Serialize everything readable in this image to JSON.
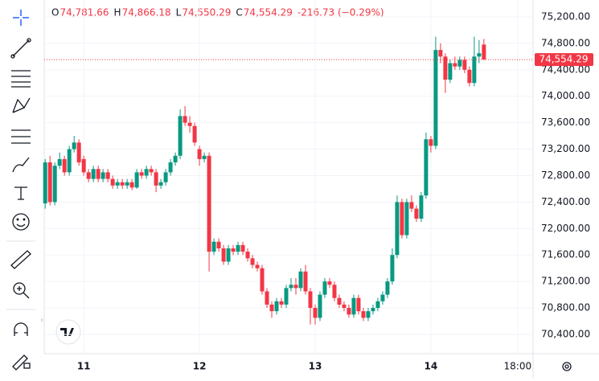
{
  "chart_data": {
    "type": "candlestick",
    "legend": [
      {
        "key": "O",
        "text": "74,781.66"
      },
      {
        "key": "H",
        "text": "74,866.18"
      },
      {
        "key": "L",
        "text": "74,550.29"
      },
      {
        "key": "C",
        "text": "74,554.29"
      }
    ],
    "change": "-216.73 (−0.29%)",
    "last_price": {
      "value": 74554.29,
      "label": "74,554.29"
    },
    "up_color": "#089981",
    "down_color": "#f23645",
    "open": [
      72380,
      73000,
      72400,
      72950,
      73050,
      72850,
      73200,
      73300,
      73050,
      72850,
      72750,
      72900,
      72750,
      72850,
      72750,
      72650,
      72700,
      72650,
      72700,
      72620,
      72850,
      72800,
      72900,
      72850,
      72650,
      72700,
      72850,
      73000,
      73100,
      73700,
      73600,
      73550,
      73200,
      73050,
      73100,
      71650,
      71800,
      71700,
      71500,
      71700,
      71650,
      71750,
      71650,
      71550,
      71450,
      71400,
      71050,
      70850,
      70750,
      70900,
      70850,
      71100,
      71150,
      71100,
      71350,
      71050,
      70800,
      70650,
      71000,
      71200,
      71150,
      70950,
      70850,
      70800,
      70700,
      70950,
      70750,
      70650,
      70750,
      70800,
      70900,
      71000,
      71200,
      71600,
      72400,
      71900,
      72400,
      72300,
      72150,
      72500,
      73350,
      73250,
      74700,
      74600,
      74250,
      74500,
      74450,
      74550,
      74400,
      74200,
      74600,
      74781.66
    ],
    "high": [
      73050,
      73100,
      73000,
      73150,
      73100,
      73250,
      73400,
      73350,
      73100,
      72900,
      72950,
      72950,
      72900,
      72900,
      72800,
      72750,
      72750,
      72750,
      72750,
      72900,
      72900,
      72950,
      72950,
      72900,
      72750,
      72900,
      73050,
      73150,
      73800,
      73850,
      73700,
      73600,
      73250,
      73150,
      73150,
      71850,
      71850,
      71750,
      71750,
      71750,
      71800,
      71800,
      71700,
      71600,
      71500,
      71450,
      71100,
      70900,
      70950,
      70950,
      71150,
      71250,
      71250,
      71400,
      71450,
      71100,
      70850,
      71050,
      71250,
      71250,
      71200,
      71000,
      70900,
      70850,
      71000,
      71000,
      70800,
      70800,
      70850,
      70950,
      71050,
      71250,
      71700,
      72500,
      72450,
      72450,
      72500,
      72350,
      72550,
      73450,
      73400,
      74900,
      74800,
      74650,
      74550,
      74600,
      74600,
      74600,
      74450,
      74900,
      74850,
      74866.18
    ],
    "low": [
      72300,
      72350,
      72350,
      72900,
      72800,
      72800,
      73150,
      72950,
      72800,
      72700,
      72700,
      72700,
      72700,
      72700,
      72600,
      72600,
      72600,
      72600,
      72580,
      72600,
      72750,
      72750,
      72800,
      72550,
      72600,
      72650,
      72800,
      72950,
      73050,
      73550,
      73450,
      73250,
      72950,
      73000,
      71350,
      71600,
      71650,
      71450,
      71450,
      71600,
      71600,
      71600,
      71500,
      71400,
      71350,
      71000,
      70800,
      70650,
      70700,
      70800,
      70800,
      71050,
      71000,
      71050,
      71000,
      70550,
      70550,
      70600,
      70950,
      71100,
      70900,
      70800,
      70750,
      70650,
      70650,
      70700,
      70600,
      70600,
      70700,
      70750,
      70850,
      70950,
      71150,
      71550,
      71850,
      71850,
      72250,
      72100,
      72100,
      72450,
      73150,
      73200,
      74500,
      74050,
      74200,
      74400,
      74400,
      74350,
      74150,
      74150,
      74500,
      74550.29
    ],
    "close": [
      73000,
      72400,
      72950,
      73050,
      72850,
      73200,
      73300,
      73000,
      72850,
      72750,
      72900,
      72750,
      72850,
      72750,
      72650,
      72700,
      72650,
      72700,
      72620,
      72850,
      72800,
      72900,
      72850,
      72650,
      72700,
      72850,
      73000,
      73100,
      73700,
      73600,
      73550,
      73300,
      73050,
      73100,
      71650,
      71800,
      71700,
      71500,
      71700,
      71650,
      71750,
      71650,
      71550,
      71450,
      71400,
      71050,
      70850,
      70750,
      70900,
      70850,
      71100,
      71150,
      71100,
      71350,
      71050,
      70800,
      70650,
      71000,
      71200,
      71150,
      70950,
      70850,
      70800,
      70700,
      70950,
      70750,
      70650,
      70750,
      70800,
      70900,
      71000,
      71200,
      71600,
      72400,
      71900,
      72400,
      72300,
      72150,
      72500,
      73350,
      73250,
      74700,
      74600,
      74250,
      74500,
      74450,
      74550,
      74400,
      74200,
      74600,
      74650,
      74554.29
    ],
    "ylim": [
      70108,
      75455
    ],
    "yticks": [
      {
        "value": 75200,
        "label": "75,200.00"
      },
      {
        "value": 74800,
        "label": "74,800.00"
      },
      {
        "value": 74400,
        "label": "74,400.00"
      },
      {
        "value": 74000,
        "label": "74,000.00"
      },
      {
        "value": 73600,
        "label": "73,600.00"
      },
      {
        "value": 73200,
        "label": "73,200.00"
      },
      {
        "value": 72800,
        "label": "72,800.00"
      },
      {
        "value": 72400,
        "label": "72,400.00"
      },
      {
        "value": 72000,
        "label": "72,000.00"
      },
      {
        "value": 71600,
        "label": "71,600.00"
      },
      {
        "value": 71200,
        "label": "71,200.00"
      },
      {
        "value": 70800,
        "label": "70,800.00"
      },
      {
        "value": 70400,
        "label": "70,400.00"
      }
    ],
    "xlim": [
      -0.2,
      101.2
    ],
    "xticks": [
      {
        "value": 8,
        "label": "11"
      },
      {
        "value": 32,
        "label": "12"
      },
      {
        "value": 56,
        "label": "13"
      },
      {
        "value": 80,
        "label": "14"
      },
      {
        "value": 98,
        "label": "18:00"
      }
    ],
    "grid": true
  }
}
